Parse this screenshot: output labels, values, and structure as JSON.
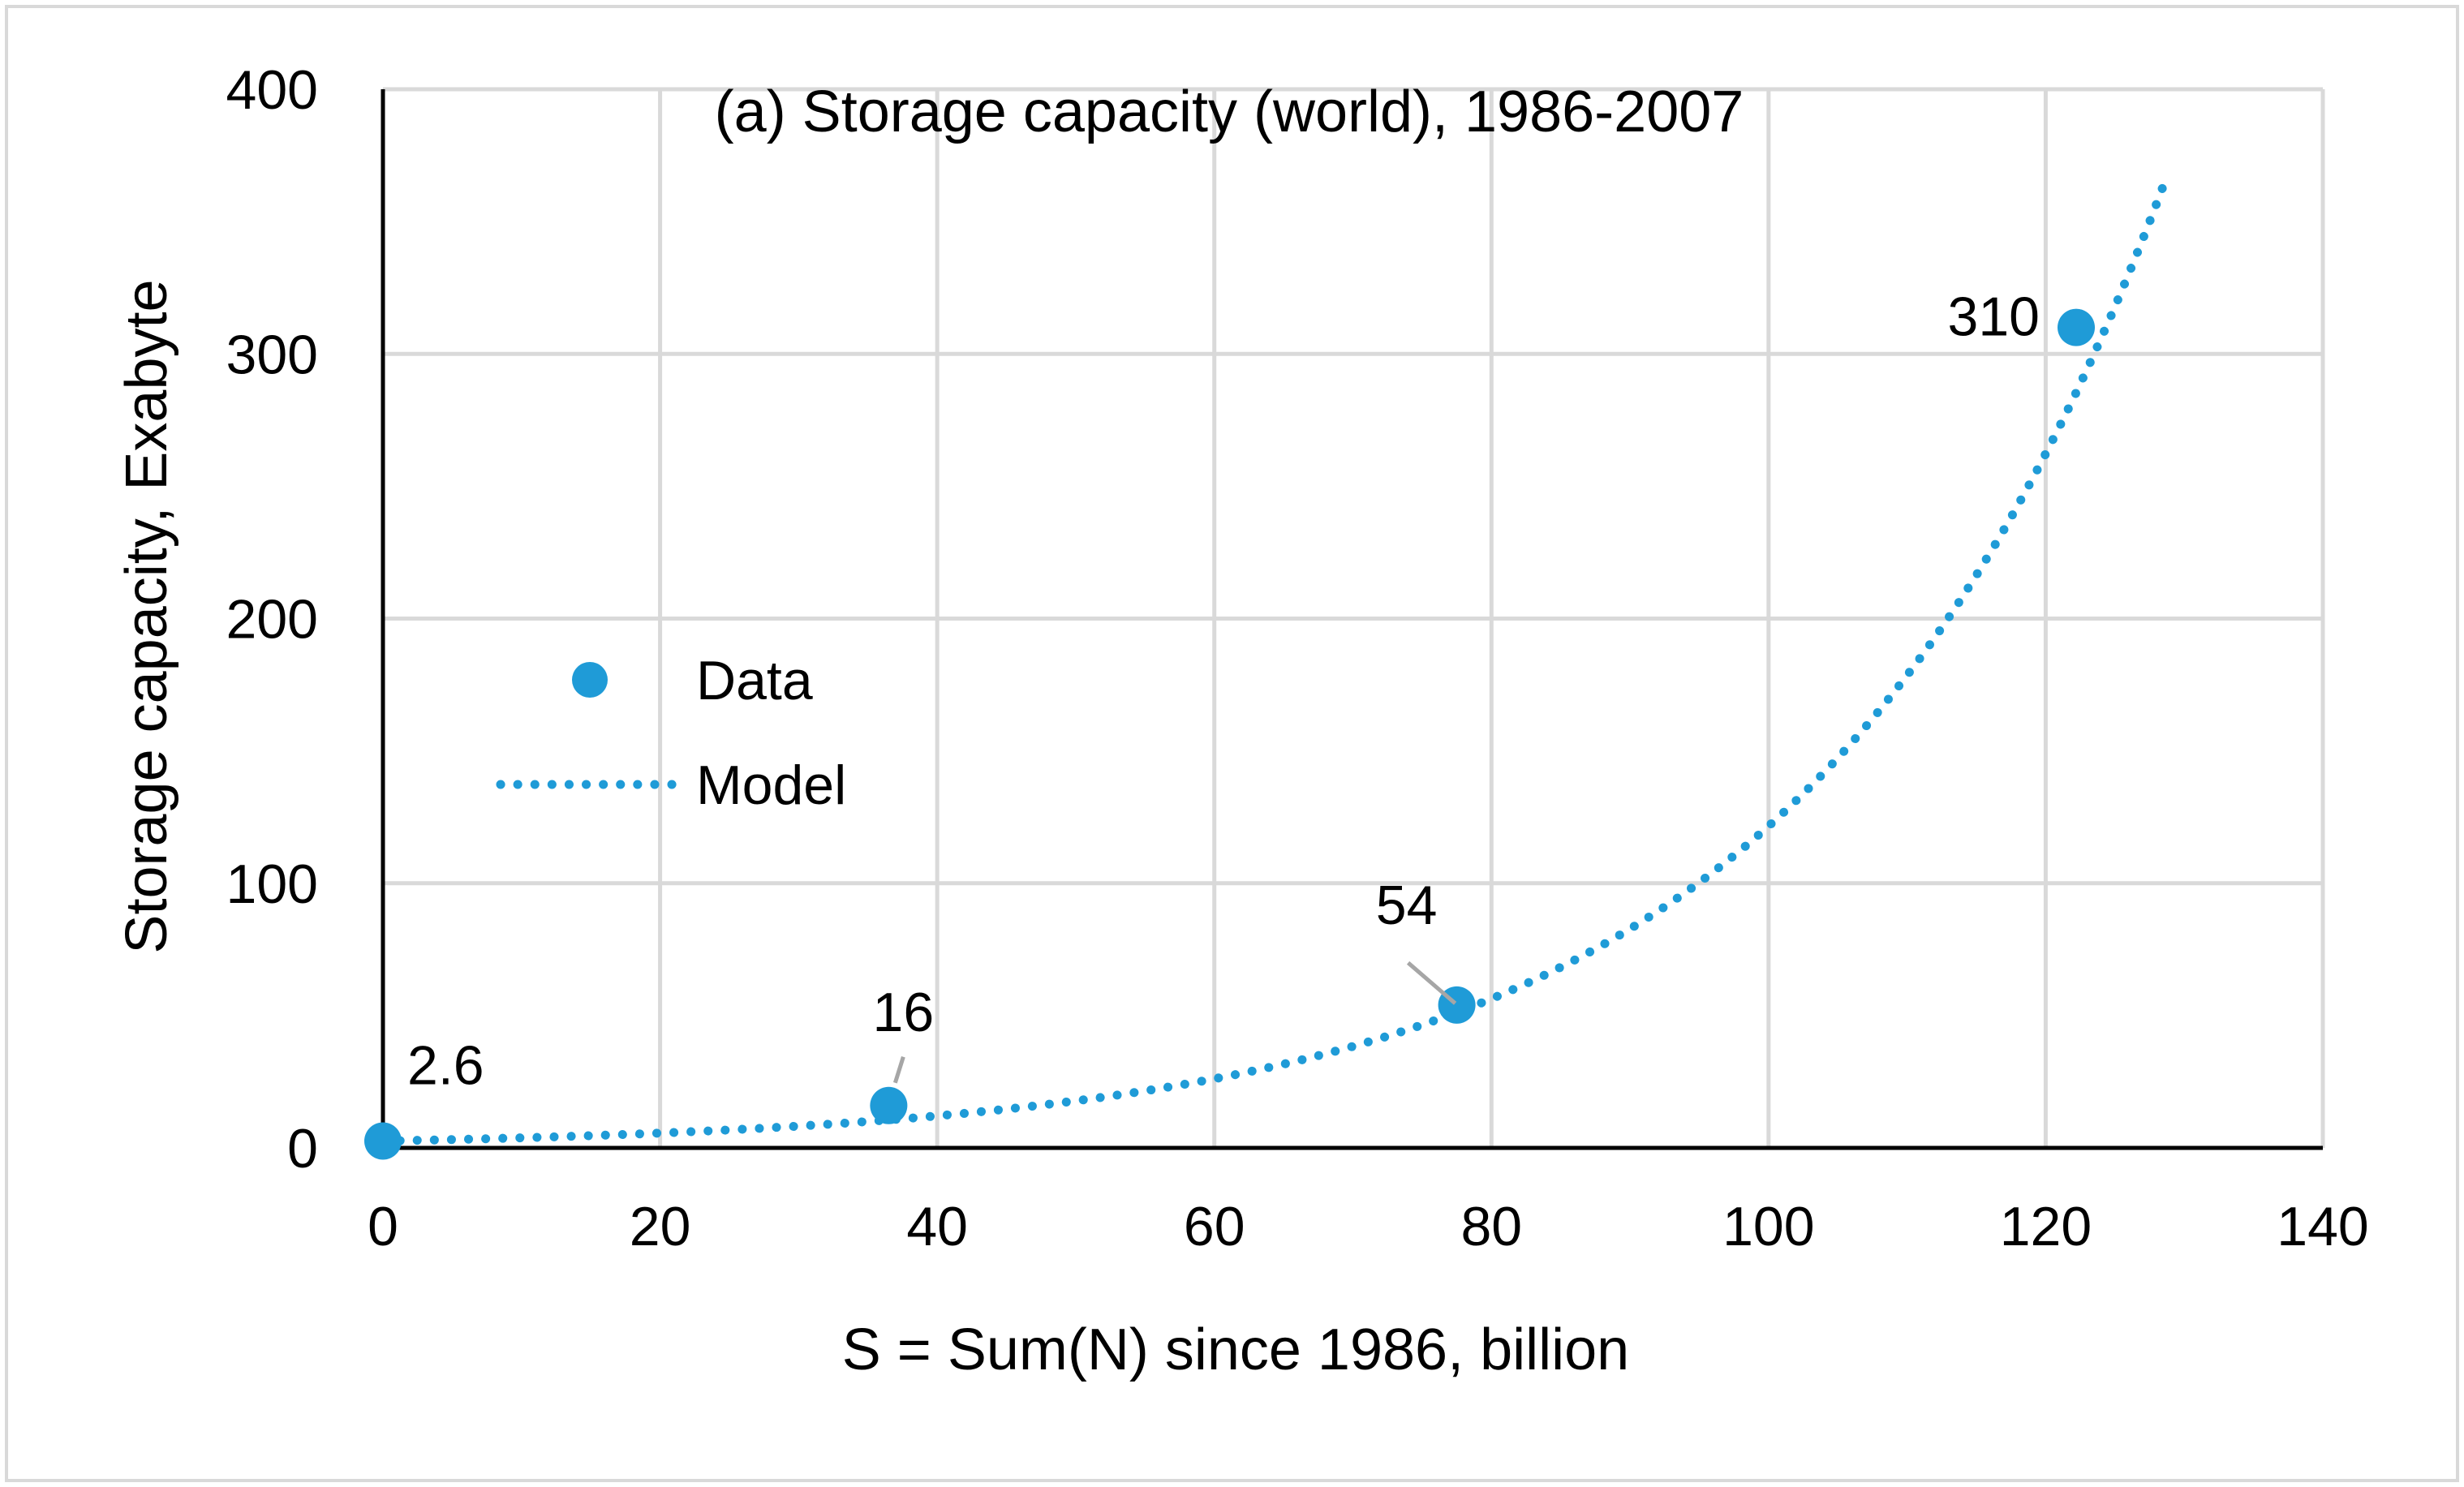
{
  "chart_data": {
    "type": "scatter",
    "title": "(a) Storage capacity (world), 1986-2007",
    "xlabel": "S = Sum(N) since 1986, billion",
    "ylabel": "Storage capacity, Exabyte",
    "xlim": [
      0,
      140
    ],
    "ylim": [
      0,
      400
    ],
    "xticks": [
      0,
      20,
      40,
      60,
      80,
      100,
      120,
      140
    ],
    "yticks": [
      0,
      100,
      200,
      300,
      400
    ],
    "xtick_labels": [
      "0",
      "20",
      "40",
      "60",
      "80",
      "100",
      "120",
      "140"
    ],
    "ytick_labels": [
      "0",
      "100",
      "200",
      "300",
      "400"
    ],
    "grid": true,
    "legend_position": "center-left",
    "series": [
      {
        "name": "Data",
        "kind": "markers",
        "color": "#1f9bd7",
        "points": [
          {
            "x": 0,
            "y": 2.6,
            "label": "2.6"
          },
          {
            "x": 36.5,
            "y": 16,
            "label": "16"
          },
          {
            "x": 77.5,
            "y": 54,
            "label": "54"
          },
          {
            "x": 122.2,
            "y": 310,
            "label": "310"
          }
        ]
      },
      {
        "name": "Model",
        "kind": "dotted-line",
        "color": "#1f9bd7",
        "x_range": [
          0,
          128.5
        ],
        "model": {
          "form": "exponential",
          "a": 2.6,
          "b": 0.03845
        }
      }
    ]
  }
}
